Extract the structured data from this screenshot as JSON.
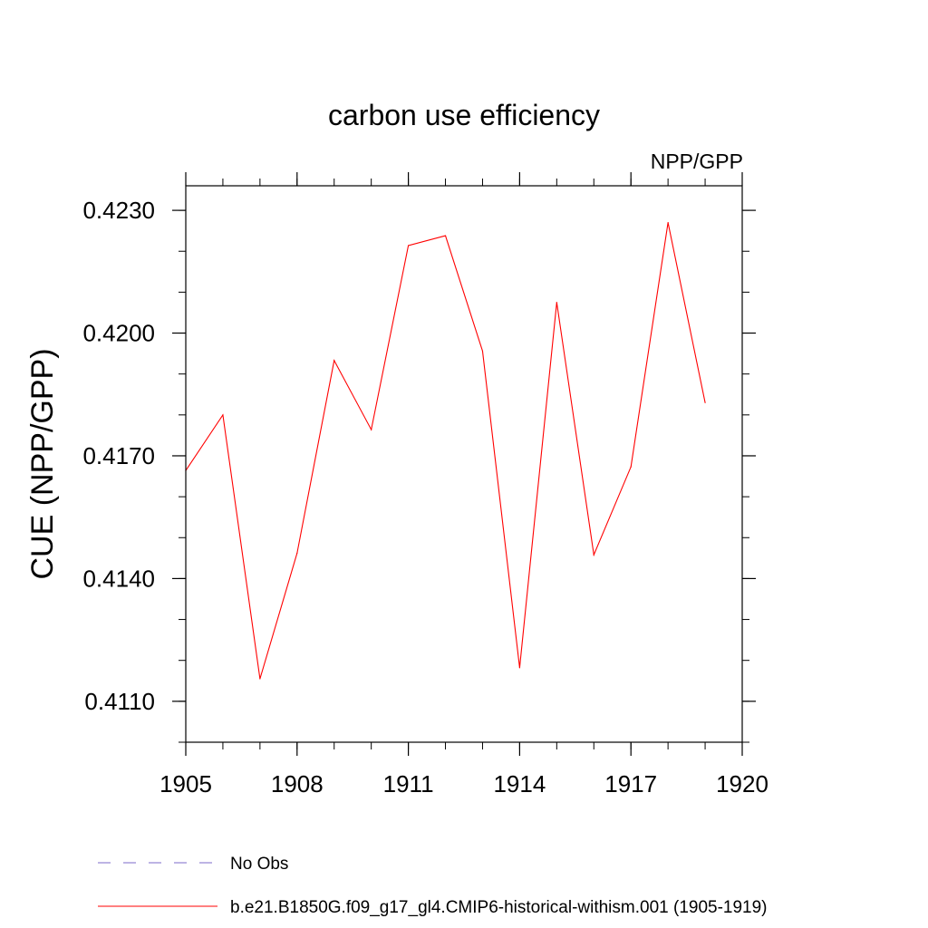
{
  "chart_data": {
    "type": "line",
    "title": "carbon use efficiency",
    "subtitle": "NPP/GPP",
    "xlabel": "",
    "ylabel": "CUE  (NPP/GPP)",
    "xlim": [
      1905,
      1920
    ],
    "ylim": [
      0.41,
      0.4236
    ],
    "x_ticks": [
      1905,
      1908,
      1911,
      1914,
      1917,
      1920
    ],
    "x_tick_labels": [
      "1905",
      "1908",
      "1911",
      "1914",
      "1917",
      "1920"
    ],
    "y_ticks": [
      0.411,
      0.414,
      0.417,
      0.42,
      0.423
    ],
    "y_tick_labels": [
      "0.4110",
      "0.4140",
      "0.4170",
      "0.4200",
      "0.4230"
    ],
    "grid": false,
    "legend_position": "bottom",
    "series": [
      {
        "name": "b.e21.B1850G.f09_g17_gl4.CMIP6-historical-withism.001 (1905-1919)",
        "color": "#ff0000",
        "line_style": "solid",
        "x": [
          1905,
          1906,
          1907,
          1908,
          1909,
          1910,
          1911,
          1912,
          1913,
          1914,
          1915,
          1916,
          1917,
          1918,
          1919
        ],
        "values": [
          0.41664,
          0.418,
          0.41155,
          0.41462,
          0.41933,
          0.41764,
          0.42214,
          0.42238,
          0.41956,
          0.41182,
          0.42075,
          0.41458,
          0.41673,
          0.4227,
          0.4183
        ]
      },
      {
        "name": "No Obs",
        "color": "#7b68c8",
        "line_style": "dashed",
        "x": [],
        "values": []
      }
    ]
  }
}
